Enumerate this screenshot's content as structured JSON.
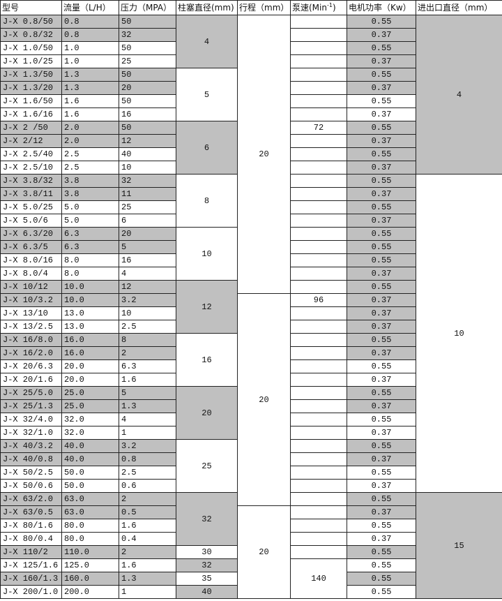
{
  "table": {
    "header": [
      "型号",
      "流量（L/H）",
      "压力（MPA）",
      "柱塞直径(mm)",
      "行程（mm）",
      {
        "text": "泵速(Min",
        "sup": "-1",
        "close": ")"
      },
      "电机功率（Kw）",
      "进出口直径（mm）"
    ],
    "rows": [
      [
        "J-X 0.8/50",
        "0.8",
        "50",
        "0.55"
      ],
      [
        "J-X 0.8/32",
        "0.8",
        "32",
        "0.37"
      ],
      [
        "J-X 1.0/50",
        "1.0",
        "50",
        "0.55"
      ],
      [
        "J-X 1.0/25",
        "1.0",
        "25",
        "0.37"
      ],
      [
        "J-X 1.3/50",
        "1.3",
        "50",
        "0.55"
      ],
      [
        "J-X 1.3/20",
        "1.3",
        "20",
        "0.37"
      ],
      [
        "J-X 1.6/50",
        "1.6",
        "50",
        "0.55"
      ],
      [
        "J-X 1.6/16",
        "1.6",
        "16",
        "0.37"
      ],
      [
        "J-X 2 /50",
        "2.0",
        "50",
        "0.55"
      ],
      [
        "J-X 2/12",
        "2.0",
        "12",
        "0.37"
      ],
      [
        "J-X 2.5/40",
        "2.5",
        "40",
        "0.55"
      ],
      [
        "J-X 2.5/10",
        "2.5",
        "10",
        "0.37"
      ],
      [
        "J-X 3.8/32",
        "3.8",
        "32",
        "0.55"
      ],
      [
        "J-X 3.8/11",
        "3.8",
        "11",
        "0.37"
      ],
      [
        "J-X 5.0/25",
        "5.0",
        "25",
        "0.55"
      ],
      [
        "J-X 5.0/6",
        "5.0",
        "6",
        "0.37"
      ],
      [
        "J-X 6.3/20",
        "6.3",
        "20",
        "0.55"
      ],
      [
        "J-X 6.3/5",
        "6.3",
        "5",
        "0.55"
      ],
      [
        "J-X 8.0/16",
        "8.0",
        "16",
        "0.55"
      ],
      [
        "J-X 8.0/4",
        "8.0",
        "4",
        "0.37"
      ],
      [
        "J-X 10/12",
        "10.0",
        "12",
        "0.55"
      ],
      [
        "J-X 10/3.2",
        "10.0",
        "3.2",
        "0.37"
      ],
      [
        "J-X 13/10",
        "13.0",
        "10",
        "0.37"
      ],
      [
        "J-X 13/2.5",
        "13.0",
        "2.5",
        "0.37"
      ],
      [
        "J-X 16/8.0",
        "16.0",
        "8",
        "0.55"
      ],
      [
        "J-X 16/2.0",
        "16.0",
        "2",
        "0.37"
      ],
      [
        "J-X 20/6.3",
        "20.0",
        "6.3",
        "0.55"
      ],
      [
        "J-X 20/1.6",
        "20.0",
        "1.6",
        "0.37"
      ],
      [
        "J-X 25/5.0",
        "25.0",
        "5",
        "0.55"
      ],
      [
        "J-X 25/1.3",
        "25.0",
        "1.3",
        "0.37"
      ],
      [
        "J-X 32/4.0",
        "32.0",
        "4",
        "0.55"
      ],
      [
        "J-X 32/1.0",
        "32.0",
        "1",
        "0.37"
      ],
      [
        "J-X 40/3.2",
        "40.0",
        "3.2",
        "0.55"
      ],
      [
        "J-X 40/0.8",
        "40.0",
        "0.8",
        "0.37"
      ],
      [
        "J-X 50/2.5",
        "50.0",
        "2.5",
        "0.55"
      ],
      [
        "J-X 50/0.6",
        "50.0",
        "0.6",
        "0.37"
      ],
      [
        "J-X 63/2.0",
        "63.0",
        "2",
        "0.55"
      ],
      [
        "J-X 63/0.5",
        "63.0",
        "0.5",
        "0.37"
      ],
      [
        "J-X 80/1.6",
        "80.0",
        "1.6",
        "0.55"
      ],
      [
        "J-X 80/0.4",
        "80.0",
        "0.4",
        "0.37"
      ],
      [
        "J-X 110/2",
        "110.0",
        "2",
        "0.55"
      ],
      [
        "J-X 125/1.6",
        "125.0",
        "1.6",
        "0.55"
      ],
      [
        "J-X 160/1.3",
        "160.0",
        "1.3",
        "0.55"
      ],
      [
        "J-X 200/1.0",
        "200.0",
        "1",
        "0.55"
      ]
    ],
    "plunger_diameter": [
      "4",
      "5",
      "6",
      "8",
      "10",
      "12",
      "16",
      "20",
      "25",
      "32",
      "30",
      "32",
      "35",
      "40"
    ],
    "stroke": [
      "20",
      "20",
      "20"
    ],
    "pump_speed": [
      "72",
      "96",
      "140"
    ],
    "port_diameter": [
      "4",
      "10",
      "15"
    ]
  }
}
